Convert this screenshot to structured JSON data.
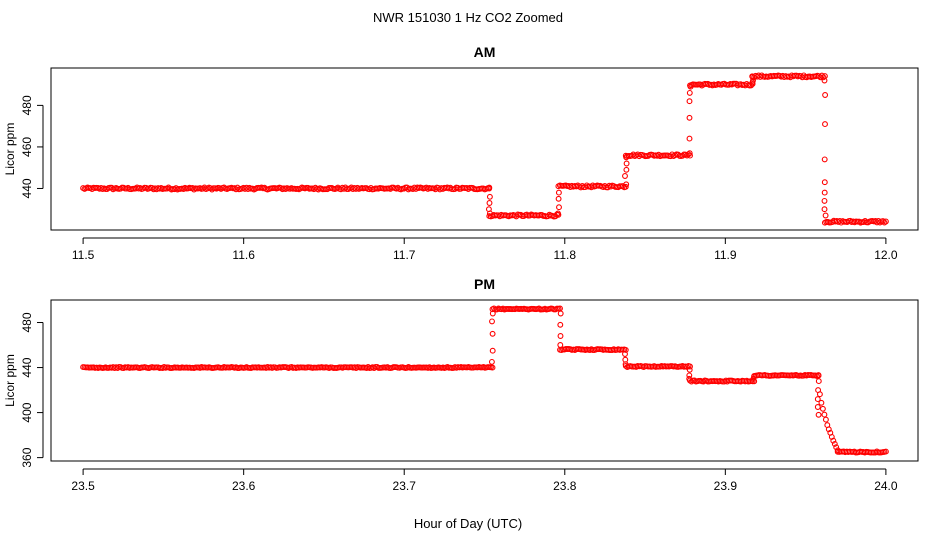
{
  "figure": {
    "title": "NWR  151030  1 Hz CO2 Zoomed",
    "xlabel": "Hour of Day (UTC)"
  },
  "chart_data": [
    {
      "type": "scatter",
      "title": "AM",
      "ylabel": "Licor ppm",
      "xlim": [
        11.48,
        12.02
      ],
      "ylim": [
        420,
        498
      ],
      "xticks": [
        11.5,
        11.6,
        11.7,
        11.8,
        11.9,
        12.0
      ],
      "xtick_labels": [
        "11.5",
        "11.6",
        "11.7",
        "11.8",
        "11.9",
        "12.0"
      ],
      "yticks": [
        440,
        460,
        480
      ],
      "ytick_labels": [
        "440",
        "460",
        "480"
      ],
      "grid": false,
      "marker_color": "#ff0000",
      "segments": [
        {
          "x": [
            11.5,
            11.753
          ],
          "y": 440
        },
        {
          "x": [
            11.753,
            11.796
          ],
          "y": 427
        },
        {
          "x": [
            11.796,
            11.838
          ],
          "y": 441
        },
        {
          "x": [
            11.838,
            11.878
          ],
          "y": 456
        },
        {
          "x": [
            11.878,
            11.917
          ],
          "y": 490
        },
        {
          "x": [
            11.917,
            11.962
          ],
          "y": 494
        },
        {
          "x": [
            11.962,
            12.0
          ],
          "y": 424
        }
      ],
      "transitions": [
        {
          "x": 11.753,
          "y": [
            440,
            436,
            433,
            430,
            428
          ]
        },
        {
          "x": 11.796,
          "y": [
            428,
            431,
            435,
            438
          ]
        },
        {
          "x": 11.838,
          "y": [
            442,
            446,
            449,
            452,
            455
          ]
        },
        {
          "x": 11.878,
          "y": [
            457,
            464,
            474,
            482,
            486,
            489
          ]
        },
        {
          "x": 11.917,
          "y": [
            491,
            492,
            494
          ]
        },
        {
          "x": 11.962,
          "y": [
            492,
            485,
            471,
            454,
            443,
            438,
            434,
            430,
            427
          ]
        }
      ]
    },
    {
      "type": "scatter",
      "title": "PM",
      "ylabel": "Licor ppm",
      "xlim": [
        23.48,
        24.02
      ],
      "ylim": [
        357,
        500
      ],
      "xticks": [
        23.5,
        23.6,
        23.7,
        23.8,
        23.9,
        24.0
      ],
      "xtick_labels": [
        "23.5",
        "23.6",
        "23.7",
        "23.8",
        "23.9",
        "24.0"
      ],
      "yticks": [
        360,
        400,
        440,
        480
      ],
      "ytick_labels": [
        "360",
        "400",
        "440",
        "480"
      ],
      "grid": false,
      "marker_color": "#ff0000",
      "segments": [
        {
          "x": [
            23.5,
            23.755
          ],
          "y": 440
        },
        {
          "x": [
            23.755,
            23.797
          ],
          "y": 492
        },
        {
          "x": [
            23.797,
            23.838
          ],
          "y": 456
        },
        {
          "x": [
            23.838,
            23.878
          ],
          "y": 441
        },
        {
          "x": [
            23.878,
            23.918
          ],
          "y": 428
        },
        {
          "x": [
            23.918,
            23.958
          ],
          "y": 433
        },
        {
          "x": [
            23.958,
            23.97
          ],
          "y": [
            433,
            366
          ]
        },
        {
          "x": [
            23.97,
            24.0
          ],
          "y": 365
        }
      ],
      "transitions": [
        {
          "x": 23.755,
          "y": [
            445,
            455,
            470,
            481,
            488
          ]
        },
        {
          "x": 23.797,
          "y": [
            488,
            478,
            468,
            460
          ]
        },
        {
          "x": 23.838,
          "y": [
            452,
            447,
            443
          ]
        },
        {
          "x": 23.878,
          "y": [
            438,
            433,
            430
          ]
        },
        {
          "x": 23.918,
          "y": [
            430,
            432
          ]
        },
        {
          "x": 23.958,
          "y": [
            428,
            420,
            412,
            405,
            398
          ]
        }
      ]
    }
  ]
}
